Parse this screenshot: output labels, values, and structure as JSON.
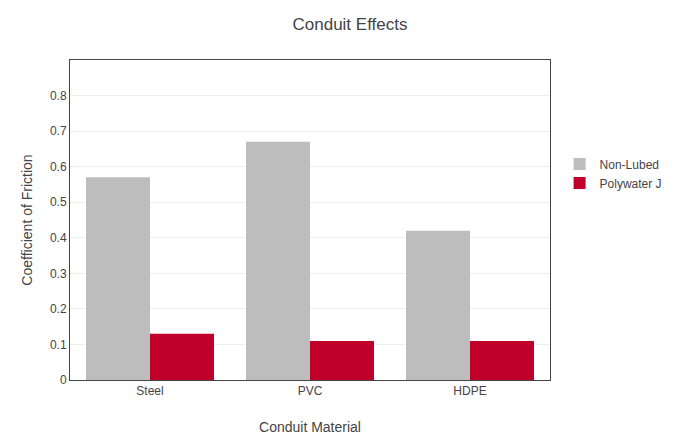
{
  "chart_data": {
    "type": "bar",
    "title": "Conduit Effects",
    "x_label": "Conduit Material",
    "y_label": "Coefficient of Friction",
    "categories": [
      "Steel",
      "PVC",
      "HDPE"
    ],
    "series": [
      {
        "name": "Non-Lubed",
        "color": "#BDBDBD",
        "values": [
          0.57,
          0.67,
          0.42
        ]
      },
      {
        "name": "Polywater J",
        "color": "#C0002A",
        "values": [
          0.13,
          0.11,
          0.11
        ]
      }
    ],
    "ylim": [
      0,
      0.9
    ],
    "yticks": [
      0,
      0.1,
      0.2,
      0.3,
      0.4,
      0.5,
      0.6,
      0.7,
      0.8
    ],
    "grid": true,
    "legend": "right"
  }
}
